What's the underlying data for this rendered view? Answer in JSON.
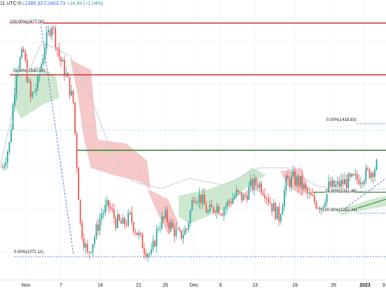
{
  "header": {
    "interval": "11",
    "utc_label": "UTC-5",
    "low": "L1385.33",
    "close": "C1403.73",
    "change": "+14.49 (+1.04%)"
  },
  "fib_labels": [
    {
      "text": "100.00%(1677.00)"
    },
    {
      "text": "78.60%(1540.94)"
    },
    {
      "text": "0.00%(1418.83)"
    },
    {
      "text": "0.00%(1071.11)"
    },
    {
      "text": "78.60%(1311.46)"
    },
    {
      "text": "100.00%(1262.34)"
    }
  ],
  "time_axis": [
    {
      "label": "Nov",
      "bold": false
    },
    {
      "label": "7",
      "bold": false
    },
    {
      "label": "14",
      "bold": false
    },
    {
      "label": "21",
      "bold": false
    },
    {
      "label": "26",
      "bold": false
    },
    {
      "label": "Dec",
      "bold": false
    },
    {
      "label": "6",
      "bold": false
    },
    {
      "label": "13",
      "bold": false
    },
    {
      "label": "19",
      "bold": false
    },
    {
      "label": "26",
      "bold": false
    },
    {
      "label": "2023",
      "bold": true
    },
    {
      "label": "9",
      "bold": false
    }
  ],
  "colors": {
    "up_candle": "#26a69a",
    "down_candle": "#ef5350",
    "cloud_bull": "#a5d6a7",
    "cloud_bear": "#ef9a9a",
    "resistance_red": "#d32f2f",
    "support_green": "#2e7d32",
    "fib_dotted": "#5b7fd6"
  },
  "chart_data": {
    "type": "candlestick",
    "title": "",
    "x": [
      "Nov",
      "7",
      "14",
      "21",
      "26",
      "Dec",
      "6",
      "13",
      "19",
      "26",
      "2023",
      "9"
    ],
    "close_path": [
      1300,
      1360,
      1560,
      1600,
      1480,
      1520,
      1620,
      1677,
      1590,
      1540,
      1470,
      1150,
      1071,
      1120,
      1180,
      1200,
      1160,
      1150,
      1170,
      1130,
      1090,
      1071,
      1150,
      1170,
      1140,
      1120,
      1140,
      1230,
      1220,
      1180,
      1200,
      1190,
      1210,
      1230,
      1220,
      1250,
      1260,
      1240,
      1200,
      1170,
      1260,
      1270,
      1260,
      1230,
      1210,
      1200,
      1250,
      1250,
      1260,
      1265,
      1270,
      1280,
      1290,
      1310
    ],
    "levels": [
      {
        "label": "100.00%(1677.00)",
        "value": 1677.0
      },
      {
        "label": "78.60%(1540.94)",
        "value": 1540.94
      },
      {
        "label": "0.00%(1418.83)",
        "value": 1418.83
      },
      {
        "label": "0.00%(1071.11)",
        "value": 1071.11
      },
      {
        "label": "78.60%(1311.46)",
        "value": 1311.46
      },
      {
        "label": "100.00%(1262.34)",
        "value": 1262.34
      }
    ],
    "horizontal_lines": [
      {
        "value": 1677.0,
        "color": "red"
      },
      {
        "value": 1590,
        "color": "red"
      },
      {
        "value": 1420,
        "color": "green"
      },
      {
        "value": 1360,
        "color": "green"
      }
    ],
    "grid": true
  }
}
